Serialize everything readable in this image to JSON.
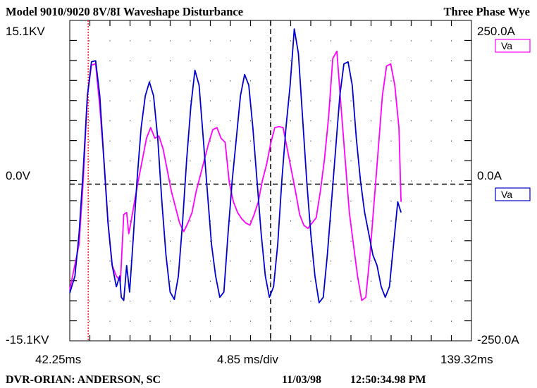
{
  "header": {
    "title": "Model 9010/9020 8V/8I  Waveshape Disturbance",
    "configuration": "Three Phase Wye"
  },
  "footer": {
    "site": "DVR-ORIAN: ANDERSON, SC",
    "date": "11/03/98",
    "time": "12:50:34.98 PM"
  },
  "colors": {
    "background": "#ffffff",
    "series_magenta": "#ff00ff",
    "series_blue": "#0000cc",
    "cursor": "#ff0000"
  },
  "chart_data": {
    "type": "line",
    "x_unit": "ms",
    "x_start_label": "42.25ms",
    "x_end_label": "139.32ms",
    "x_scale_label": "4.85 ms/div",
    "xlim": [
      42.25,
      139.32
    ],
    "x_divisions": 20,
    "y_left_labels": {
      "top": "15.1KV",
      "zero": "0.0V",
      "bottom": "-15.1KV"
    },
    "y_right_labels": {
      "top": "250.0A",
      "zero": "0.0A",
      "bottom": "-250.0A"
    },
    "ylim_kv": [
      -15.1,
      15.1
    ],
    "y_divisions": 16,
    "grid": "dotted",
    "zero_line": "dashed",
    "center_cursor": "dashed",
    "red_cursor_ms": 46.7,
    "legend": [
      {
        "label": "Va",
        "color": "#ff00ff",
        "position": "top-right"
      },
      {
        "label": "Va",
        "color": "#0000cc",
        "position": "middle-right"
      }
    ],
    "series": [
      {
        "name": "Va",
        "color": "#ff00ff",
        "points": [
          [
            42.25,
            -10.3
          ],
          [
            44.5,
            -6
          ],
          [
            45.5,
            0
          ],
          [
            46.5,
            8
          ],
          [
            47.5,
            10.9
          ],
          [
            48.5,
            11
          ],
          [
            49.5,
            7
          ],
          [
            50.5,
            2
          ],
          [
            51.5,
            -4
          ],
          [
            52.5,
            -8
          ],
          [
            53.5,
            -9
          ],
          [
            54.5,
            -9.5
          ],
          [
            55.3,
            -3.2
          ],
          [
            56,
            -3
          ],
          [
            56.5,
            -5
          ],
          [
            57,
            -4
          ],
          [
            57.8,
            -2.2
          ],
          [
            58.8,
            0
          ],
          [
            59.8,
            2
          ],
          [
            60.8,
            4
          ],
          [
            61.8,
            5
          ],
          [
            62.8,
            4
          ],
          [
            63.8,
            4.2
          ],
          [
            64.8,
            3
          ],
          [
            65.8,
            1
          ],
          [
            66.8,
            -1
          ],
          [
            67.8,
            -2.5
          ],
          [
            68.8,
            -4
          ],
          [
            69.8,
            -4.8
          ],
          [
            70.8,
            -4
          ],
          [
            71.8,
            -3
          ],
          [
            72.8,
            -1
          ],
          [
            73.8,
            0.5
          ],
          [
            74.8,
            2
          ],
          [
            75.8,
            3.5
          ],
          [
            76.8,
            4.8
          ],
          [
            77.8,
            5
          ],
          [
            78.8,
            4
          ],
          [
            79.8,
            3.6
          ],
          [
            80.8,
            -0.2
          ],
          [
            81.8,
            -2
          ],
          [
            82.8,
            -3
          ],
          [
            83.8,
            -3.6
          ],
          [
            84.8,
            -4
          ],
          [
            85.8,
            -4.2
          ],
          [
            86.8,
            -3.2
          ],
          [
            87.8,
            -2
          ],
          [
            88.8,
            0
          ],
          [
            89.8,
            1.5
          ],
          [
            90.8,
            3.5
          ],
          [
            91.8,
            5
          ],
          [
            92.8,
            5.1
          ],
          [
            93.8,
            5
          ],
          [
            94.8,
            3
          ],
          [
            95.8,
            1
          ],
          [
            96.8,
            -1
          ],
          [
            97.8,
            -3.2
          ],
          [
            98.8,
            -4.2
          ],
          [
            99.8,
            -4.5
          ],
          [
            100.8,
            -4
          ],
          [
            101.8,
            -3.5
          ],
          [
            102.8,
            -1
          ],
          [
            103.8,
            2
          ],
          [
            104.8,
            6
          ],
          [
            105.8,
            11.5
          ],
          [
            106.8,
            12.2
          ],
          [
            107.8,
            7
          ],
          [
            108.8,
            2
          ],
          [
            109.8,
            -3
          ],
          [
            110.8,
            -6
          ],
          [
            111.8,
            -9
          ],
          [
            112.8,
            -11.3
          ],
          [
            113.8,
            -11
          ],
          [
            114.8,
            -7
          ],
          [
            115.8,
            -2
          ],
          [
            116.8,
            3
          ],
          [
            117.8,
            8
          ],
          [
            118.8,
            10.8
          ],
          [
            119.8,
            11
          ],
          [
            120.8,
            9
          ],
          [
            121.8,
            5
          ],
          [
            122.3,
            -2
          ]
        ]
      },
      {
        "name": "Va",
        "color": "#0000cc",
        "points": [
          [
            42.25,
            -10.6
          ],
          [
            43.5,
            -9
          ],
          [
            44.5,
            -5
          ],
          [
            45.5,
            1
          ],
          [
            46.5,
            8
          ],
          [
            47.5,
            11.2
          ],
          [
            48.5,
            11.3
          ],
          [
            49.5,
            8
          ],
          [
            50.5,
            2
          ],
          [
            51.5,
            -4
          ],
          [
            52.5,
            -8
          ],
          [
            53.5,
            -10
          ],
          [
            54.3,
            -9
          ],
          [
            54.7,
            -11
          ],
          [
            55.3,
            -11.3
          ],
          [
            56,
            -8
          ],
          [
            56.7,
            -10.5
          ],
          [
            57.5,
            -6
          ],
          [
            58.5,
            0
          ],
          [
            59.5,
            5
          ],
          [
            60.5,
            8
          ],
          [
            61.5,
            9.3
          ],
          [
            62.5,
            8
          ],
          [
            63.5,
            4
          ],
          [
            64.5,
            -2
          ],
          [
            65.5,
            -7
          ],
          [
            66.5,
            -10.5
          ],
          [
            67.5,
            -11.2
          ],
          [
            68.5,
            -9
          ],
          [
            69.5,
            -4
          ],
          [
            70.5,
            2
          ],
          [
            71.5,
            7
          ],
          [
            72.5,
            10.4
          ],
          [
            73.5,
            9
          ],
          [
            74.5,
            4
          ],
          [
            75.5,
            -1
          ],
          [
            76.5,
            -6
          ],
          [
            77.5,
            -9
          ],
          [
            78.5,
            -11
          ],
          [
            79.5,
            -10.5
          ],
          [
            80.5,
            -5
          ],
          [
            81.5,
            0
          ],
          [
            82.5,
            4
          ],
          [
            83.5,
            8
          ],
          [
            84.5,
            10
          ],
          [
            85.5,
            9
          ],
          [
            86.5,
            5
          ],
          [
            87.5,
            0
          ],
          [
            88.5,
            -5
          ],
          [
            89.5,
            -9
          ],
          [
            90.5,
            -11
          ],
          [
            91.5,
            -10
          ],
          [
            92.5,
            -6
          ],
          [
            93.5,
            0
          ],
          [
            94.5,
            5
          ],
          [
            95.5,
            9
          ],
          [
            96.5,
            14.3
          ],
          [
            97.5,
            12
          ],
          [
            98.5,
            6
          ],
          [
            99.5,
            0
          ],
          [
            100.5,
            -5
          ],
          [
            101.5,
            -9
          ],
          [
            102.5,
            -11.5
          ],
          [
            103.5,
            -11
          ],
          [
            104.5,
            -7
          ],
          [
            105.5,
            -2
          ],
          [
            106.5,
            3
          ],
          [
            107.5,
            8
          ],
          [
            108.5,
            11
          ],
          [
            109.5,
            11.2
          ],
          [
            110.5,
            9
          ],
          [
            111.5,
            4
          ],
          [
            112.5,
            0
          ],
          [
            113.5,
            -3
          ],
          [
            114.5,
            -5
          ],
          [
            115.5,
            -7
          ],
          [
            116.5,
            -8
          ],
          [
            117.5,
            -10
          ],
          [
            118.5,
            -11
          ],
          [
            119.5,
            -10
          ],
          [
            120.5,
            -6
          ],
          [
            121.5,
            -2
          ],
          [
            122.3,
            -3
          ]
        ]
      }
    ]
  }
}
